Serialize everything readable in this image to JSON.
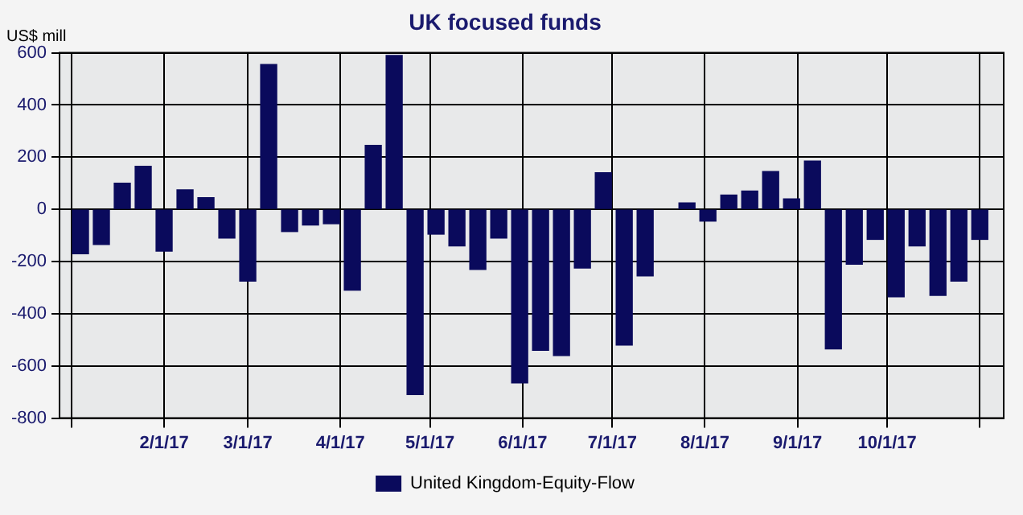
{
  "chart_data": {
    "type": "bar",
    "title": "UK focused funds",
    "ylabel": "US$ mill",
    "x": [
      "2017-01-04",
      "2017-01-11",
      "2017-01-18",
      "2017-01-25",
      "2017-02-01",
      "2017-02-08",
      "2017-02-15",
      "2017-02-22",
      "2017-03-01",
      "2017-03-08",
      "2017-03-15",
      "2017-03-22",
      "2017-03-29",
      "2017-04-05",
      "2017-04-12",
      "2017-04-19",
      "2017-04-26",
      "2017-05-03",
      "2017-05-10",
      "2017-05-17",
      "2017-05-24",
      "2017-05-31",
      "2017-06-07",
      "2017-06-14",
      "2017-06-21",
      "2017-06-28",
      "2017-07-05",
      "2017-07-12",
      "2017-07-19",
      "2017-07-26",
      "2017-08-02",
      "2017-08-09",
      "2017-08-16",
      "2017-08-23",
      "2017-08-30",
      "2017-09-06",
      "2017-09-13",
      "2017-09-20",
      "2017-09-27",
      "2017-10-04",
      "2017-10-11",
      "2017-10-18",
      "2017-10-25",
      "2017-11-01"
    ],
    "series": [
      {
        "name": "United Kingdom-Equity-Flow",
        "color": "#0a0a5c",
        "values": [
          -170,
          -135,
          100,
          165,
          -160,
          75,
          45,
          -110,
          -275,
          555,
          -85,
          -60,
          -55,
          -310,
          245,
          590,
          -710,
          -95,
          -140,
          -230,
          -110,
          -665,
          -540,
          -560,
          -225,
          140,
          -520,
          -255,
          null,
          25,
          -45,
          55,
          70,
          145,
          40,
          185,
          -535,
          -210,
          -115,
          -335,
          -140,
          -330,
          -275,
          -115
        ]
      }
    ],
    "xlim": [
      "2016-12-28",
      "2017-11-09"
    ],
    "xticks": [
      {
        "value": "2017-01-01",
        "label": null
      },
      {
        "value": "2017-02-01",
        "label": "2/1/17"
      },
      {
        "value": "2017-03-01",
        "label": "3/1/17"
      },
      {
        "value": "2017-04-01",
        "label": "4/1/17"
      },
      {
        "value": "2017-05-01",
        "label": "5/1/17"
      },
      {
        "value": "2017-06-01",
        "label": "6/1/17"
      },
      {
        "value": "2017-07-01",
        "label": "7/1/17"
      },
      {
        "value": "2017-08-01",
        "label": "8/1/17"
      },
      {
        "value": "2017-09-01",
        "label": "9/1/17"
      },
      {
        "value": "2017-10-01",
        "label": "10/1/17"
      },
      {
        "value": "2017-11-01",
        "label": null
      }
    ],
    "ylim": [
      -800,
      600
    ],
    "yticks": [
      -800,
      -600,
      -400,
      -200,
      0,
      200,
      400,
      600
    ],
    "grid": true,
    "legend": "bottom"
  }
}
